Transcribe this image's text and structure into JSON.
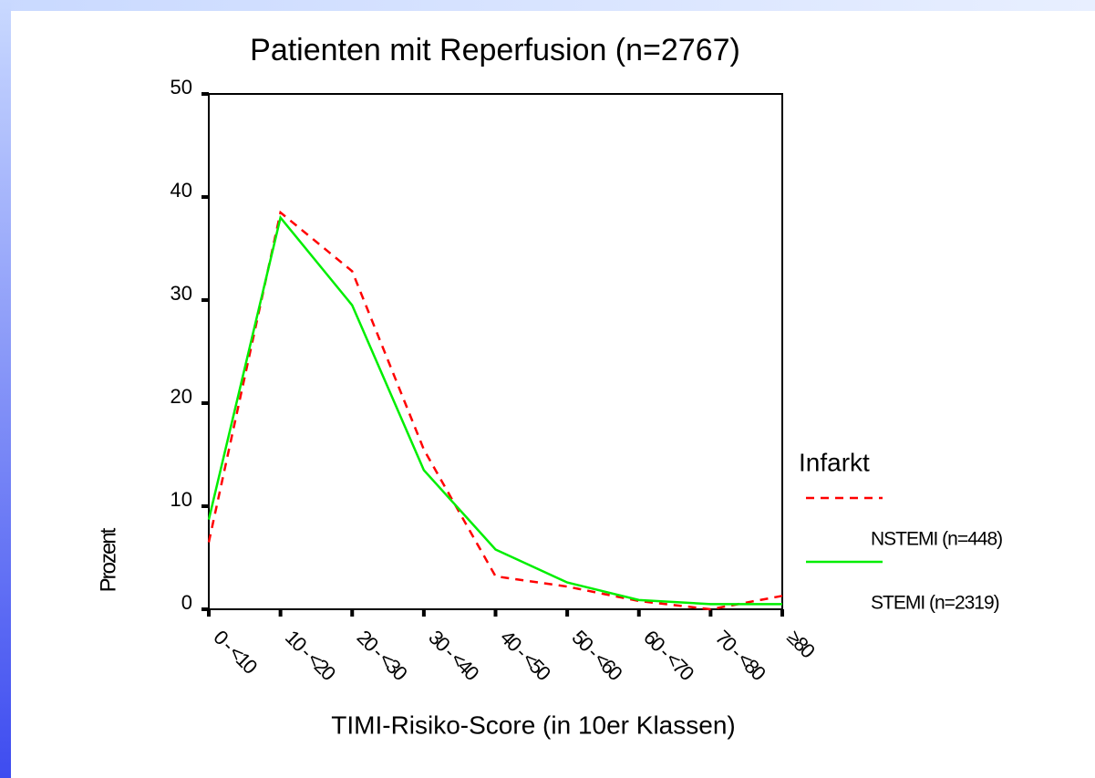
{
  "chart_data": {
    "type": "line",
    "title": "Patienten mit Reperfusion (n=2767)",
    "x_label": "TIMI-Risiko-Score (in 10er Klassen)",
    "y_label": "Prozent",
    "legend_title": "Infarkt",
    "categories": [
      "0 - <10",
      "10 - <20",
      "20 - <30",
      "30 - <40",
      "40 - <50",
      "50 - <60",
      "60 - <70",
      "70 - <80",
      "≥80"
    ],
    "series": [
      {
        "name": "NSTEMI (n=448)",
        "color": "#ff0000",
        "dash": true,
        "values": [
          6.5,
          38.5,
          32.8,
          15.5,
          3.2,
          2.2,
          0.8,
          0,
          1.3
        ]
      },
      {
        "name": "STEMI (n=2319)",
        "color": "#00ee00",
        "dash": false,
        "values": [
          8.7,
          38,
          29.5,
          13.5,
          5.8,
          2.6,
          0.9,
          0.5,
          0.5
        ]
      }
    ],
    "ylim": [
      0,
      50
    ],
    "yticks": [
      0,
      10,
      20,
      30,
      40,
      50
    ]
  }
}
